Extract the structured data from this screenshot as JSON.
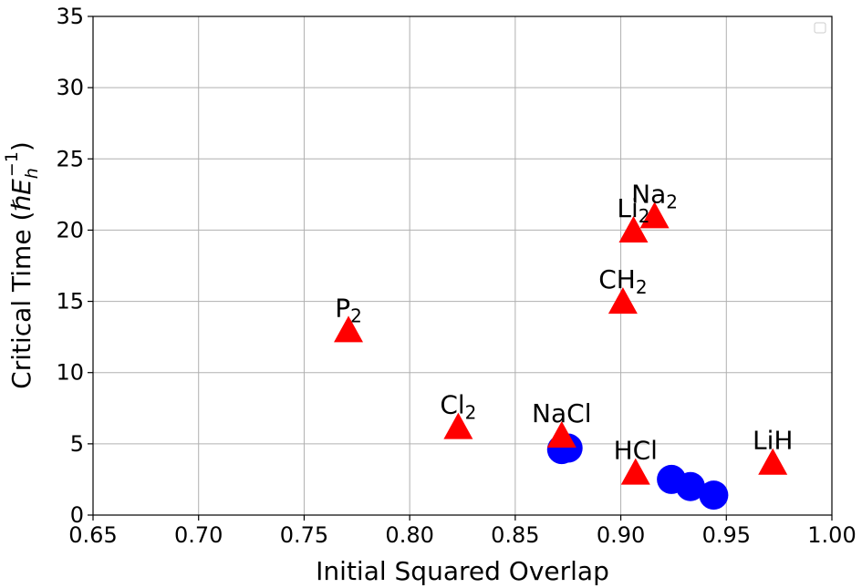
{
  "chart_data": {
    "type": "scatter",
    "xlabel": "Initial Squared Overlap",
    "ylabel": "Critical Time (ℏE_h^{-1})",
    "ylabel_parts": {
      "main": "Critical Time (",
      "symbol": "ℏE",
      "sub": "h",
      "sup": "−1",
      "close": ")"
    },
    "xlim": [
      0.65,
      1.0
    ],
    "ylim": [
      0,
      35
    ],
    "xticks": [
      "0.65",
      "0.70",
      "0.75",
      "0.80",
      "0.85",
      "0.90",
      "0.95",
      "1.00"
    ],
    "yticks": [
      "0",
      "5",
      "10",
      "15",
      "20",
      "25",
      "30",
      "35"
    ],
    "grid": true,
    "legend": "top-right (empty)",
    "series": [
      {
        "marker": "triangle",
        "color": "#ff0000",
        "points": [
          {
            "x": 0.771,
            "y": 12.9,
            "label": "P",
            "sub": "2"
          },
          {
            "x": 0.823,
            "y": 6.1,
            "label": "Cl",
            "sub": "2"
          },
          {
            "x": 0.872,
            "y": 5.5,
            "label": "NaCl",
            "sub": ""
          },
          {
            "x": 0.901,
            "y": 14.9,
            "label": "CH",
            "sub": "2"
          },
          {
            "x": 0.906,
            "y": 19.9,
            "label": "Li",
            "sub": "2"
          },
          {
            "x": 0.916,
            "y": 20.9,
            "label": "Na",
            "sub": "2"
          },
          {
            "x": 0.907,
            "y": 2.9,
            "label": "HCl",
            "sub": ""
          },
          {
            "x": 0.972,
            "y": 3.6,
            "label": "LiH",
            "sub": ""
          }
        ]
      },
      {
        "marker": "circle",
        "color": "#0000ff",
        "points": [
          {
            "x": 0.872,
            "y": 4.6
          },
          {
            "x": 0.875,
            "y": 4.7
          },
          {
            "x": 0.924,
            "y": 2.5
          },
          {
            "x": 0.933,
            "y": 2.0
          },
          {
            "x": 0.944,
            "y": 1.4
          }
        ]
      }
    ]
  }
}
